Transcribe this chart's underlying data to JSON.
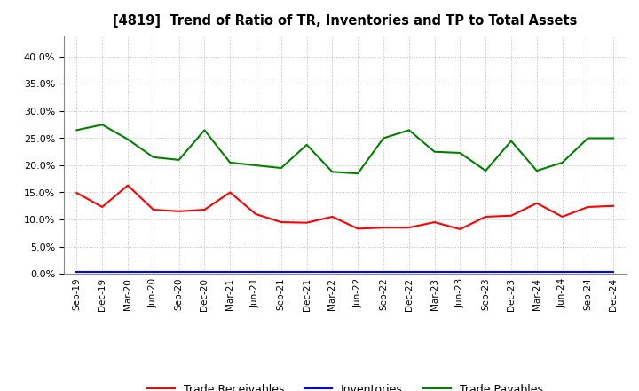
{
  "title": "[4819]  Trend of Ratio of TR, Inventories and TP to Total Assets",
  "labels": [
    "Sep-19",
    "Dec-19",
    "Mar-20",
    "Jun-20",
    "Sep-20",
    "Dec-20",
    "Mar-21",
    "Jun-21",
    "Sep-21",
    "Dec-21",
    "Mar-22",
    "Jun-22",
    "Sep-22",
    "Dec-22",
    "Mar-23",
    "Jun-23",
    "Sep-23",
    "Dec-23",
    "Mar-24",
    "Jun-24",
    "Sep-24",
    "Dec-24"
  ],
  "trade_receivables": [
    0.149,
    0.123,
    0.163,
    0.118,
    0.115,
    0.118,
    0.15,
    0.11,
    0.095,
    0.094,
    0.105,
    0.083,
    0.085,
    0.085,
    0.095,
    0.082,
    0.105,
    0.107,
    0.13,
    0.105,
    0.123,
    0.125
  ],
  "inventories": [
    0.003,
    0.003,
    0.003,
    0.003,
    0.003,
    0.003,
    0.003,
    0.003,
    0.003,
    0.003,
    0.003,
    0.003,
    0.003,
    0.003,
    0.003,
    0.003,
    0.003,
    0.003,
    0.003,
    0.003,
    0.003,
    0.003
  ],
  "trade_payables": [
    0.265,
    0.275,
    0.248,
    0.215,
    0.21,
    0.265,
    0.205,
    0.2,
    0.195,
    0.238,
    0.188,
    0.185,
    0.25,
    0.265,
    0.225,
    0.223,
    0.19,
    0.245,
    0.19,
    0.205,
    0.25,
    0.25
  ],
  "tr_color": "#FF0000",
  "inv_color": "#0000FF",
  "tp_color": "#008000",
  "background_color": "#FFFFFF",
  "grid_color": "#AAAAAA",
  "ylim": [
    0.0,
    0.44
  ],
  "yticks": [
    0.0,
    0.05,
    0.1,
    0.15,
    0.2,
    0.25,
    0.3,
    0.35,
    0.4
  ],
  "legend_labels": [
    "Trade Receivables",
    "Inventories",
    "Trade Payables"
  ]
}
